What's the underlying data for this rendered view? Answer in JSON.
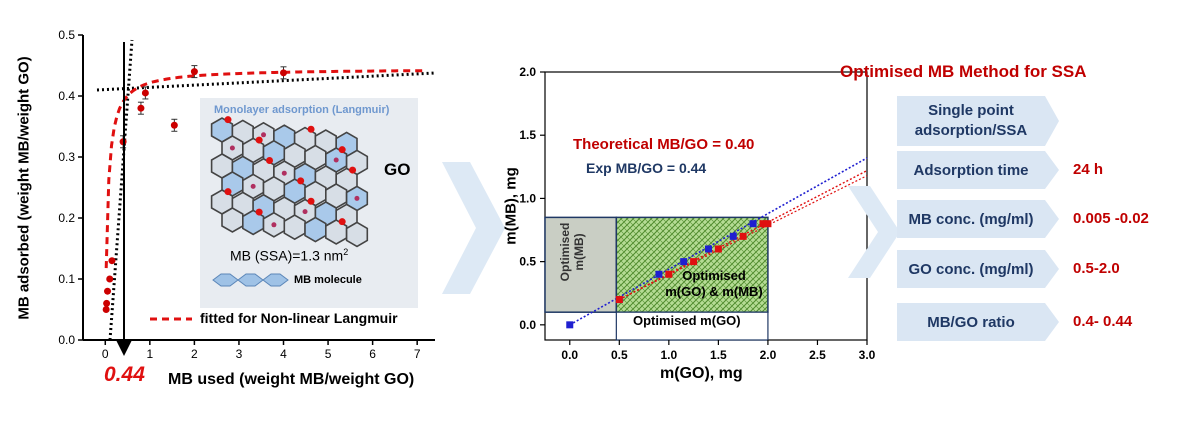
{
  "chart_data": [
    {
      "type": "scatter",
      "xlabel": "MB used (weight MB/weight GO)",
      "ylabel": "MB adsorbed (weight MB/weight GO)",
      "xlim": [
        -0.5,
        7.4
      ],
      "ylim": [
        0,
        0.5
      ],
      "x_ticks": [
        "0",
        "1",
        "2",
        "3",
        "4",
        "5",
        "6",
        "7"
      ],
      "y_ticks": [
        "0.0",
        "0.1",
        "0.2",
        "0.3",
        "0.4",
        "0.5"
      ],
      "grid": false,
      "series": [
        {
          "name": "",
          "color": "#cc0000",
          "points": [
            {
              "x": 0.02,
              "y": 0.05
            },
            {
              "x": 0.03,
              "y": 0.06
            },
            {
              "x": 0.05,
              "y": 0.08
            },
            {
              "x": 0.1,
              "y": 0.1
            },
            {
              "x": 0.15,
              "y": 0.13
            },
            {
              "x": 0.4,
              "y": 0.325
            },
            {
              "x": 0.8,
              "y": 0.38
            },
            {
              "x": 0.9,
              "y": 0.405
            },
            {
              "x": 1.55,
              "y": 0.352
            },
            {
              "x": 2.0,
              "y": 0.44
            },
            {
              "x": 4.0,
              "y": 0.438
            }
          ]
        }
      ],
      "fit_label": "fitted for Non-linear Langmuir",
      "fit": {
        "qmax": 0.445,
        "K": 18
      },
      "annotation_value": "0.44",
      "inset": {
        "title": "Monolayer adsorption  (Langmuir)",
        "go_label": "GO",
        "ssa_label": "MB (SSA)=1.3 nm",
        "ssa_sup": "2",
        "molecule_label": "MB molecule"
      }
    },
    {
      "type": "scatter",
      "xlabel": "m(GO), mg",
      "ylabel": "m(MB), mg",
      "xlim": [
        -0.25,
        3.0
      ],
      "ylim": [
        -0.12,
        2.0
      ],
      "x_ticks": [
        "0.0",
        "0.5",
        "1.0",
        "1.5",
        "2.0",
        "2.5",
        "3.0"
      ],
      "y_ticks": [
        "0.0",
        "0.5",
        "1.0",
        "1.5",
        "2.0"
      ],
      "grid": false,
      "series": [
        {
          "name": "Exp MB/GO = 0.44",
          "color": "#1f1fd0",
          "points": [
            {
              "x": 0.0,
              "y": 0.0
            },
            {
              "x": 0.5,
              "y": 0.2
            },
            {
              "x": 0.9,
              "y": 0.4
            },
            {
              "x": 1.15,
              "y": 0.5
            },
            {
              "x": 1.4,
              "y": 0.6
            },
            {
              "x": 1.65,
              "y": 0.7
            },
            {
              "x": 1.85,
              "y": 0.8
            }
          ]
        },
        {
          "name": "Theoretical MB/GO = 0.40",
          "color": "#e01010",
          "points": [
            {
              "x": 0.5,
              "y": 0.2
            },
            {
              "x": 1.0,
              "y": 0.4
            },
            {
              "x": 1.25,
              "y": 0.5
            },
            {
              "x": 1.5,
              "y": 0.6
            },
            {
              "x": 1.75,
              "y": 0.7
            },
            {
              "x": 1.95,
              "y": 0.8
            },
            {
              "x": 2.0,
              "y": 0.8
            }
          ]
        }
      ],
      "region_labels": {
        "optimised_mmb_1": "Optimised",
        "optimised_mmb_2": "m(MB)",
        "optimised_both_1": "Optimised",
        "optimised_both_2": "m(GO) & m(MB)",
        "optimised_mgo": "Optimised m(GO)"
      }
    }
  ],
  "panel": {
    "title": "Optimised MB Method for SSA",
    "rows": [
      {
        "label_1": "Single point",
        "label_2": "adsorption/SSA",
        "value": ""
      },
      {
        "label_1": "Adsorption time",
        "label_2": "",
        "value": "24 h"
      },
      {
        "label_1": "MB conc. (mg/ml)",
        "label_2": "",
        "value": "0.005 -0.02"
      },
      {
        "label_1": "GO conc. (mg/ml)",
        "label_2": "",
        "value": "0.5-2.0"
      },
      {
        "label_1": "MB/GO ratio",
        "label_2": "",
        "value": "0.4- 0.44"
      }
    ]
  },
  "colors": {
    "chevron": "#dde9f5",
    "box": "#dae6f3",
    "grey_region": "#c9cec4",
    "green_region": "#9ccc6f",
    "accent_red": "#c00000",
    "navy": "#1f3864"
  }
}
